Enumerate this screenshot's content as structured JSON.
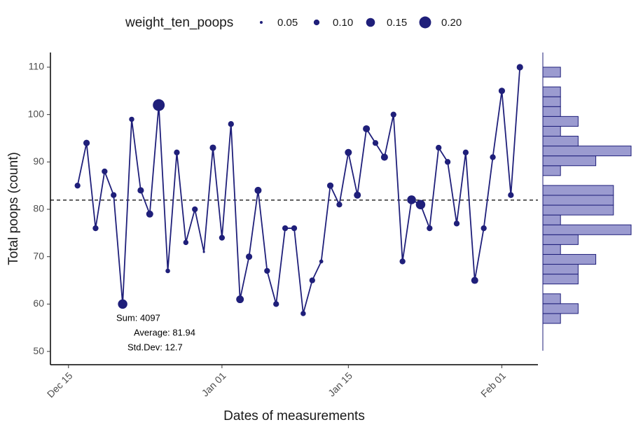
{
  "chart_data": {
    "type": "line",
    "xlabel": "Dates of measurements",
    "ylabel": "Total poops (count)",
    "color": "#1f1f7a",
    "x": [
      "Dec 16",
      "Dec 17",
      "Dec 18",
      "Dec 19",
      "Dec 20",
      "Dec 21",
      "Dec 22",
      "Dec 23",
      "Dec 24",
      "Dec 25",
      "Dec 26",
      "Dec 27",
      "Dec 28",
      "Dec 29",
      "Dec 30",
      "Dec 31",
      "Jan 01",
      "Jan 02",
      "Jan 03",
      "Jan 04",
      "Jan 05",
      "Jan 06",
      "Jan 07",
      "Jan 08",
      "Jan 09",
      "Jan 10",
      "Jan 11",
      "Jan 12",
      "Jan 13",
      "Jan 14",
      "Jan 15",
      "Jan 16",
      "Jan 17",
      "Jan 18",
      "Jan 19",
      "Jan 20",
      "Jan 21",
      "Jan 22",
      "Jan 23",
      "Jan 24",
      "Jan 25",
      "Jan 26",
      "Jan 27",
      "Jan 28",
      "Jan 29",
      "Jan 30",
      "Jan 31",
      "Feb 01",
      "Feb 02",
      "Feb 03"
    ],
    "values": [
      85,
      94,
      76,
      88,
      83,
      60,
      99,
      84,
      79,
      102,
      67,
      92,
      73,
      80,
      71,
      93,
      74,
      98,
      61,
      70,
      84,
      67,
      60,
      76,
      76,
      58,
      65,
      69,
      85,
      81,
      92,
      83,
      97,
      94,
      91,
      100,
      69,
      82,
      81,
      76,
      93,
      90,
      77,
      92,
      65,
      76,
      91,
      105,
      83,
      110
    ],
    "sizes": [
      0.1,
      0.11,
      0.1,
      0.1,
      0.1,
      0.16,
      0.09,
      0.11,
      0.12,
      0.2,
      0.08,
      0.1,
      0.09,
      0.1,
      0.04,
      0.11,
      0.1,
      0.1,
      0.13,
      0.11,
      0.12,
      0.1,
      0.1,
      0.1,
      0.1,
      0.09,
      0.1,
      0.07,
      0.11,
      0.1,
      0.12,
      0.12,
      0.12,
      0.1,
      0.12,
      0.1,
      0.1,
      0.15,
      0.16,
      0.1,
      0.1,
      0.1,
      0.1,
      0.1,
      0.12,
      0.1,
      0.1,
      0.11,
      0.1,
      0.11
    ],
    "xlim": [
      "Dec 13",
      "Feb 05"
    ],
    "xticks": [
      "Dec 15",
      "Jan 01",
      "Jan 15",
      "Feb 01"
    ],
    "ylim": [
      47.2,
      113.1
    ],
    "yticks": [
      50,
      60,
      70,
      80,
      90,
      100,
      110
    ],
    "hline": 81.94,
    "annotations": [
      "Sum: 4097",
      "Average: 81.94",
      "Std.Dev: 12.7"
    ],
    "legend": {
      "title": "weight_ten_poops",
      "position": "top",
      "sizes": [
        0.05,
        {
          "value": 0.1,
          "label": "0.10"
        },
        0.15,
        {
          "value": 0.2,
          "label": "0.20"
        }
      ]
    },
    "marginal_histogram": {
      "color": "#9b9bd0",
      "edge_color": "#1f1f7a",
      "bins": [
        55.92,
        58.0,
        60.08,
        62.16,
        64.24,
        66.32,
        68.4,
        70.48,
        72.56,
        74.64,
        76.72,
        78.8,
        80.88,
        82.96,
        85.04,
        87.12,
        89.2,
        91.28,
        93.36,
        95.44,
        97.52,
        99.6,
        101.68,
        103.76,
        105.84,
        107.92,
        110.0
      ],
      "counts": [
        1,
        2,
        1,
        0,
        2,
        2,
        3,
        1,
        2,
        5,
        1,
        4,
        4,
        4,
        0,
        1,
        3,
        5,
        2,
        1,
        2,
        1,
        1,
        1,
        0,
        1
      ]
    }
  }
}
